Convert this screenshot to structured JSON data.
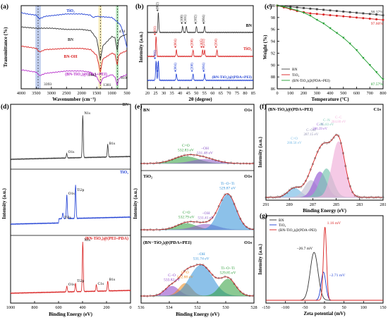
{
  "chart_data": [
    {
      "panel": "(a)",
      "type": "line",
      "xlabel": "Wavenumber (cm⁻¹)",
      "ylabel": "Transmittance (%)",
      "xlim": [
        4000,
        500
      ],
      "x_ticks": [
        "4000",
        "3500",
        "3000",
        "2500",
        "2000",
        "1500",
        "1000",
        "500"
      ],
      "series": [
        {
          "name": "TiO₂",
          "color": "#1f3fd4",
          "x": [
            4000,
            3800,
            3500,
            3400,
            3200,
            2500,
            2000,
            1700,
            1630,
            1500,
            1000,
            900,
            800,
            700,
            600,
            500
          ],
          "y": [
            94,
            93,
            92,
            89,
            91,
            93,
            93,
            92,
            90,
            91,
            90,
            88,
            86,
            83,
            75,
            65
          ]
        },
        {
          "name": "BN",
          "color": "#333333",
          "x": [
            4000,
            3500,
            3000,
            2500,
            2000,
            1700,
            1500,
            1381,
            1300,
            1000,
            900,
            819,
            780,
            700,
            600,
            500
          ],
          "y": [
            82,
            81,
            81,
            80,
            80,
            79,
            72,
            54,
            66,
            74,
            73,
            62,
            71,
            74,
            75,
            76
          ]
        },
        {
          "name": "BN-OH",
          "color": "#d92020",
          "x": [
            4000,
            3500,
            3393,
            3200,
            2500,
            2000,
            1700,
            1500,
            1381,
            1300,
            1000,
            900,
            819,
            780,
            700,
            600,
            500
          ],
          "y": [
            66,
            64,
            61,
            63,
            64,
            64,
            63,
            58,
            44,
            55,
            60,
            59,
            50,
            58,
            60,
            61,
            62
          ]
        },
        {
          "name": "(BN-TiO₂)@(PDA+PEI)",
          "color": "#b52cc9",
          "x": [
            4000,
            3500,
            3393,
            3200,
            2500,
            2000,
            1700,
            1642,
            1500,
            1381,
            1300,
            1000,
            900,
            819,
            780,
            700,
            600,
            500
          ],
          "y": [
            46,
            44,
            41,
            43,
            45,
            45,
            44,
            42,
            40,
            34,
            39,
            42,
            40,
            33,
            38,
            40,
            41,
            42
          ]
        }
      ],
      "annotations": [
        "474",
        "3393",
        "1642",
        "1381",
        "819"
      ],
      "highlight_bands": [
        {
          "center": 3440,
          "width": 180,
          "color": "#8fa8e0"
        },
        {
          "center": 1390,
          "width": 110,
          "color": "#f2e08c"
        },
        {
          "center": 819,
          "width": 90,
          "color": "#7fd18a"
        }
      ]
    },
    {
      "panel": "(b)",
      "type": "line",
      "xlabel": "2θ (degree)",
      "ylabel": "Intensity (a.u.)",
      "xlim": [
        20,
        85
      ],
      "x_ticks": [
        "20",
        "25",
        "30",
        "35",
        "40",
        "45",
        "50",
        "55",
        "60",
        "65",
        "70",
        "75",
        "80",
        "85"
      ],
      "series": [
        {
          "name": "BN",
          "color": "#333333",
          "peaks": [
            26.7,
            41.6,
            43.9,
            50.1,
            55.1
          ],
          "labels": [
            "♠(002)",
            "♠(100)",
            "♠(101)",
            "♠(102)",
            "♠(004)"
          ]
        },
        {
          "name": "TiO₂",
          "color": "#d92020",
          "peaks": [
            25.3,
            37.8,
            48.0,
            53.9,
            55.1,
            62.7
          ],
          "labels": [
            "♦(101)",
            "♦(004)",
            "♦(200)",
            "♦(105)",
            "♦(211)",
            "♦(204)"
          ]
        },
        {
          "name": "(BN-TiO₂)@(PDA+PEI)",
          "color": "#1f3fd4",
          "peaks": [
            25.3,
            26.7,
            37.8,
            48.0,
            55.1
          ],
          "labels": [
            "♦(101)",
            "♠(002)",
            "♦(004)",
            "♦(200)",
            "♠(004)"
          ]
        }
      ]
    },
    {
      "panel": "(c)",
      "type": "line",
      "xlabel": "Temperature (°C)",
      "ylabel": "Weight (%)",
      "xlim": [
        0,
        800
      ],
      "ylim": [
        86,
        100
      ],
      "x_ticks": [
        "0",
        "100",
        "200",
        "300",
        "400",
        "500",
        "600",
        "700",
        "800"
      ],
      "y_ticks": [
        "86",
        "88",
        "90",
        "92",
        "94",
        "96",
        "98",
        "100"
      ],
      "legend_loc": "lower-left",
      "series": [
        {
          "name": "BN",
          "color": "#444444",
          "marker": "square",
          "x": [
            0,
            50,
            100,
            150,
            200,
            250,
            300,
            350,
            400,
            450,
            500,
            550,
            600,
            650,
            700,
            750,
            800
          ],
          "y": [
            100,
            99.9,
            99.8,
            99.7,
            99.6,
            99.5,
            99.4,
            99.3,
            99.2,
            99.1,
            99.0,
            98.9,
            98.8,
            98.7,
            98.6,
            98.5,
            98.37
          ]
        },
        {
          "name": "TiO₂",
          "color": "#d92020",
          "marker": "circle",
          "x": [
            0,
            50,
            100,
            150,
            200,
            250,
            300,
            350,
            400,
            450,
            500,
            550,
            600,
            650,
            700,
            750,
            800
          ],
          "y": [
            100,
            99.7,
            99.4,
            99.1,
            98.9,
            98.7,
            98.6,
            98.5,
            98.4,
            98.3,
            98.2,
            98.1,
            98.0,
            97.9,
            97.8,
            97.7,
            97.6
          ]
        },
        {
          "name": "(BN-TiO₂)@(PDA+PEI)",
          "color": "#1e9e2e",
          "marker": "triangle",
          "x": [
            0,
            50,
            100,
            150,
            200,
            250,
            300,
            350,
            400,
            450,
            500,
            550,
            600,
            650,
            700,
            750,
            800
          ],
          "y": [
            100,
            99.8,
            99.5,
            99.2,
            98.8,
            98.3,
            97.6,
            97.0,
            96.2,
            95.4,
            94.6,
            93.6,
            92.5,
            91.2,
            90.0,
            88.8,
            87.57
          ]
        }
      ],
      "annotations": [
        "98.37%",
        "97.60%",
        "87.57%"
      ]
    },
    {
      "panel": "(d)",
      "type": "line",
      "xlabel": "Binding Energy (eV)",
      "ylabel": "Intensity (a.u.)",
      "xlim": [
        1000,
        0
      ],
      "x_ticks": [
        "1000",
        "800",
        "600",
        "400",
        "200",
        "0"
      ],
      "series": [
        {
          "name": "BN",
          "color": "#333333",
          "peak_labels": [
            "N1s",
            "O1s",
            "B1s"
          ]
        },
        {
          "name": "TiO₂",
          "color": "#1f3fd4",
          "peak_labels": [
            "O1s",
            "Ti2s",
            "Ti2p"
          ]
        },
        {
          "name": "(BN-TiO₂)@(PEI+PDA)",
          "color": "#d92020",
          "peak_labels": [
            "N1s",
            "O1s",
            "Ti2p",
            "C1s",
            "B1s"
          ]
        }
      ]
    },
    {
      "panel": "(e)",
      "type": "area",
      "xlabel": "Binding Energy (eV)",
      "ylabel": "Intensity (a.u.)",
      "xlim": [
        536,
        528
      ],
      "x_ticks": [
        "536",
        "534",
        "532",
        "530",
        "528"
      ],
      "subpanels": [
        {
          "sample": "BN",
          "core": "O1s",
          "components": [
            {
              "label": "C=O",
              "value": "532.83 eV",
              "color": "#2e9e3a"
            },
            {
              "label": "−OH",
              "value": "531.48 eV",
              "color": "#8b58c8"
            }
          ]
        },
        {
          "sample": "TiO₂",
          "core": "O1s",
          "components": [
            {
              "label": "C=O",
              "value": "532.79 eV",
              "color": "#2e9e3a"
            },
            {
              "label": "−OH",
              "value": "531.41 eV",
              "color": "#8b58c8"
            },
            {
              "label": "Ti−O−Ti",
              "value": "529.87 eV",
              "color": "#2f8fd8"
            }
          ]
        },
        {
          "sample": "(BN−TiO₂)@(PDA+PEI)",
          "core": "O1s",
          "components": [
            {
              "label": "C−O",
              "value": "533.82 eV",
              "color": "#8b3fc8"
            },
            {
              "label": "C=O",
              "value": "532.88 eV",
              "color": "#f08a1a"
            },
            {
              "label": "−OH",
              "value": "531.74 eV",
              "color": "#2f8fd8"
            },
            {
              "label": "Ti−O−Ti",
              "value": "529.85 eV",
              "color": "#2e9e3a"
            }
          ]
        }
      ]
    },
    {
      "panel": "(f)",
      "type": "area",
      "title": "(BN-TiO₂)@(PDA+PEI)",
      "core": "C1s",
      "xlabel": "Binding Energy (eV)",
      "ylabel": "Intensity (a.u.)",
      "xlim": [
        291,
        281
      ],
      "x_ticks": [
        "291",
        "289",
        "287",
        "285",
        "283",
        "281"
      ],
      "components": [
        {
          "label": "C=O",
          "value": "288.58 eV",
          "center": 288.58,
          "height": 0.12,
          "color": "#7fbfe8"
        },
        {
          "label": "C−OH",
          "value": "287.15 eV",
          "center": 287.15,
          "height": 0.22,
          "color": "#c7c7d8"
        },
        {
          "label": "C−N",
          "value": "286.39 eV",
          "center": 286.39,
          "height": 0.33,
          "color": "#9a62d6"
        },
        {
          "label": "C−N",
          "value": "285.83 eV",
          "center": 285.83,
          "height": 0.37,
          "color": "#7ec8b5"
        },
        {
          "label": "C−C",
          "value": "284.80 eV",
          "center": 284.8,
          "height": 0.72,
          "color": "#f2b4dc"
        }
      ]
    },
    {
      "panel": "(g)",
      "type": "line",
      "xlabel": "Zeta potential (mV)",
      "ylabel": "Intensity (a.u.)",
      "xlim": [
        -150,
        150
      ],
      "x_ticks": [
        "-150",
        "-100",
        "-50",
        "0",
        "50",
        "100",
        "150"
      ],
      "series": [
        {
          "name": "BN",
          "color": "#333333",
          "peak": -26.7,
          "label": "−26.7 mV"
        },
        {
          "name": "TiO₂",
          "color": "#1f3fd4",
          "peak": -2.71,
          "label": "−2.71 mV"
        },
        {
          "name": "(BN-TiO₂)@(PDA+PEI)",
          "color": "#d92020",
          "peak": 1.16,
          "label": "1.16 mV"
        }
      ]
    }
  ]
}
